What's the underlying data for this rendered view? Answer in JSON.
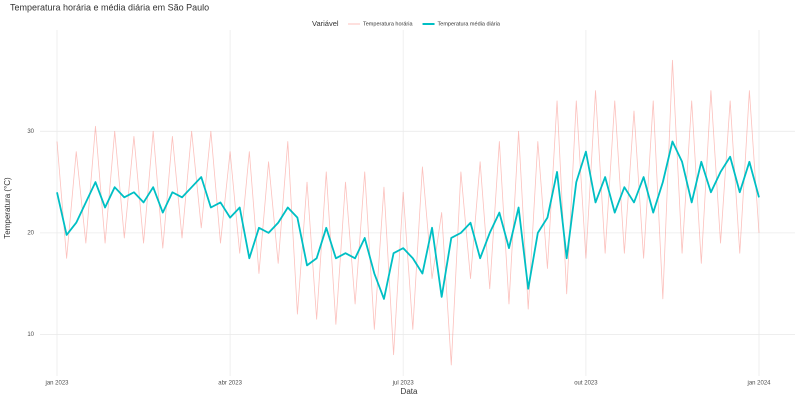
{
  "chart_data": {
    "type": "line",
    "title": "Temperatura horária e média diária em São Paulo",
    "x_label": "Data",
    "y_label": "Temperatura (°C)",
    "legend_title": "Variável",
    "legend_position": "top",
    "categories": [
      "jan 2023",
      null,
      null,
      null,
      null,
      null,
      null,
      null,
      null,
      null,
      null,
      null,
      null,
      null,
      null,
      null,
      null,
      null,
      "abr 2023",
      null,
      null,
      null,
      null,
      null,
      null,
      null,
      null,
      null,
      null,
      null,
      null,
      null,
      null,
      null,
      null,
      null,
      "jul 2023",
      null,
      null,
      null,
      null,
      null,
      null,
      null,
      null,
      null,
      null,
      null,
      null,
      null,
      null,
      null,
      null,
      null,
      null,
      "out 2023",
      null,
      null,
      null,
      null,
      null,
      null,
      null,
      null,
      null,
      null,
      null,
      null,
      null,
      null,
      null,
      null,
      null,
      "jan 2024"
    ],
    "series": [
      {
        "name": "Temperatura horária",
        "color": "#f8766d",
        "values": [
          29,
          17.5,
          28,
          19,
          30.5,
          19,
          30,
          19.5,
          29.5,
          19,
          30,
          18.5,
          29.5,
          19.5,
          30,
          20.5,
          30,
          19,
          28,
          18,
          28,
          16,
          27,
          17,
          29,
          12,
          25,
          11.5,
          26,
          11,
          25,
          13,
          26,
          10.5,
          24.5,
          8,
          24,
          10.5,
          26.5,
          15.5,
          22,
          7,
          26,
          15.5,
          27,
          14.5,
          29,
          13,
          30,
          12.5,
          29,
          16.5,
          33,
          14,
          33,
          17.5,
          34,
          18,
          33,
          18,
          32,
          17.5,
          33,
          13.5,
          37,
          18,
          33,
          17,
          34,
          19,
          33,
          18,
          34,
          20
        ]
      },
      {
        "name": "Temperatura média diária",
        "color": "#00bfc4",
        "values": [
          24,
          19.8,
          21,
          23,
          25,
          22.5,
          24.5,
          23.5,
          24,
          23,
          24.5,
          22,
          24,
          23.5,
          24.5,
          25.5,
          22.5,
          23,
          21.5,
          22.5,
          17.5,
          20.5,
          20,
          21,
          22.5,
          21.5,
          16.8,
          17.5,
          20.5,
          17.5,
          18,
          17.5,
          19.5,
          16,
          13.5,
          18,
          18.5,
          17.5,
          16,
          20.5,
          13.7,
          19.5,
          20,
          21,
          17.5,
          20,
          22,
          18.5,
          22.5,
          14.5,
          20,
          21.5,
          26,
          17.5,
          25,
          28,
          23,
          25.5,
          22,
          24.5,
          23,
          25.5,
          22,
          25,
          29,
          27,
          23,
          27,
          24,
          26,
          27.5,
          24,
          27,
          23.5
        ]
      }
    ],
    "ylim": [
      6.5,
      38.5
    ],
    "yticks": [
      10,
      20,
      30
    ],
    "grid": true
  }
}
